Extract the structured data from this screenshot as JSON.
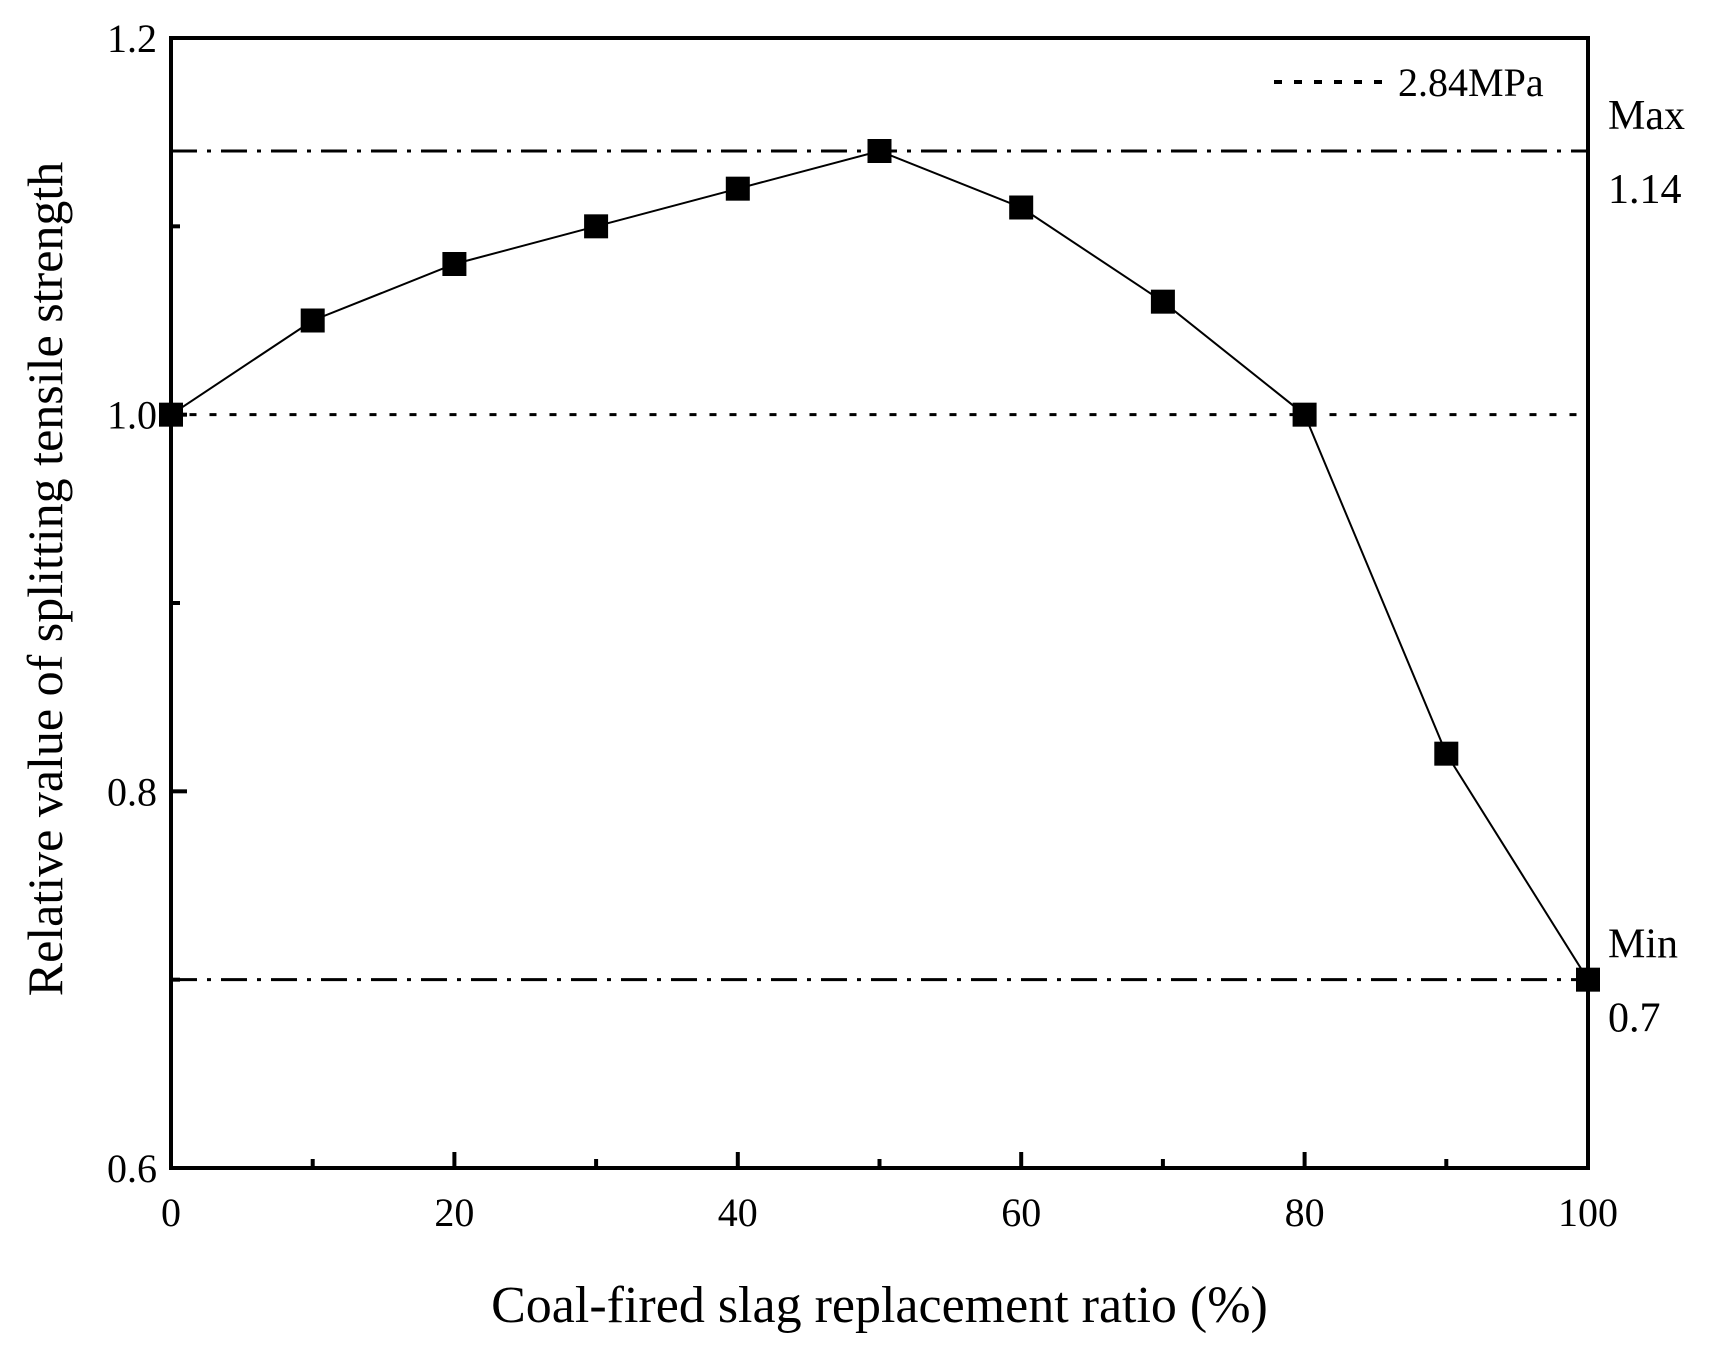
{
  "chart_data": {
    "type": "line",
    "title": "",
    "xlabel": "Coal-fired slag replacement ratio (%)",
    "ylabel": "Relative value of splitting tensile strength",
    "xlim": [
      0,
      100
    ],
    "ylim": [
      0.6,
      1.2
    ],
    "x_ticks": [
      0,
      20,
      40,
      60,
      80,
      100
    ],
    "x_tick_labels": [
      "0",
      "20",
      "40",
      "60",
      "80",
      "100"
    ],
    "x_minor_ticks": [
      10,
      30,
      50,
      70,
      90
    ],
    "y_ticks": [
      0.6,
      0.8,
      1.0,
      1.2
    ],
    "y_tick_labels": [
      "0.6",
      "0.8",
      "1.0",
      "1.2"
    ],
    "y_minor_ticks": [
      0.7,
      0.9,
      1.1
    ],
    "grid": false,
    "legend_position": "top-right",
    "series": [
      {
        "x": [
          0,
          10,
          20,
          30,
          40,
          50,
          60,
          70,
          80,
          90,
          100
        ],
        "values": [
          1.0,
          1.05,
          1.08,
          1.1,
          1.12,
          1.14,
          1.11,
          1.06,
          1.0,
          0.82,
          0.7
        ],
        "marker": "square",
        "color": "#000000"
      }
    ],
    "reference_lines": [
      {
        "y": 1.0,
        "style": "dotted",
        "legend_label": "2.84MPa"
      },
      {
        "y": 1.14,
        "style": "dash-dot",
        "label_line1": "Max",
        "label_line2": "1.14"
      },
      {
        "y": 0.7,
        "style": "dash-dot",
        "label_line1": "Min",
        "label_line2": "0.7"
      }
    ]
  }
}
